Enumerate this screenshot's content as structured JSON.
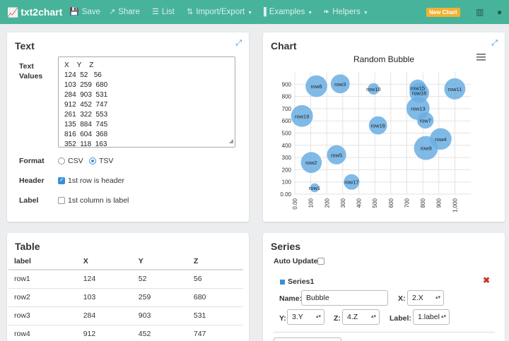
{
  "nav": {
    "brand": "txt2chart",
    "items": [
      {
        "label": "Save",
        "icon": "save-icon"
      },
      {
        "label": "Share",
        "icon": "share-icon"
      },
      {
        "label": "List",
        "icon": "list-icon"
      },
      {
        "label": "Import/Export",
        "icon": "import-export-icon"
      },
      {
        "label": "Examples",
        "icon": "bar-chart-icon"
      },
      {
        "label": "Helpers",
        "icon": "leaf-icon"
      }
    ],
    "new_chart": "New Chart",
    "accent": "#47b39a",
    "new_chart_color": "#f0b132"
  },
  "text_panel": {
    "title": "Text",
    "values_label_1": "Text",
    "values_label_2": "Values",
    "values": "X    Y    Z\n124  52   56\n103  259  680\n284  903  531\n912  452  747\n261  322  553\n135  884  745\n816  604  368\n352  118  163",
    "format_label": "Format",
    "format_csv": "CSV",
    "format_tsv": "TSV",
    "format_selected": "TSV",
    "header_label": "Header",
    "header_option": "1st row is header",
    "label_label": "Label",
    "label_option": "1st column is label"
  },
  "chart_panel": {
    "title": "Chart"
  },
  "chart_data": {
    "type": "scatter",
    "subtype": "bubble",
    "title": "Random Bubble",
    "xlim": [
      0,
      1100
    ],
    "ylim": [
      0,
      1000
    ],
    "x_ticks": [
      "0.00",
      "100",
      "200",
      "300",
      "400",
      "500",
      "600",
      "700",
      "800",
      "900",
      "1,000"
    ],
    "y_ticks": [
      "0.00",
      "100",
      "200",
      "300",
      "400",
      "500",
      "600",
      "700",
      "800",
      "900"
    ],
    "grid": true,
    "color": "#6aaee3",
    "points": [
      {
        "label": "row1",
        "x": 124,
        "y": 52,
        "z": 56
      },
      {
        "label": "row2",
        "x": 103,
        "y": 259,
        "z": 680
      },
      {
        "label": "row3",
        "x": 284,
        "y": 903,
        "z": 531
      },
      {
        "label": "row4",
        "x": 912,
        "y": 452,
        "z": 747
      },
      {
        "label": "row5",
        "x": 261,
        "y": 322,
        "z": 553
      },
      {
        "label": "row6",
        "x": 135,
        "y": 884,
        "z": 745
      },
      {
        "label": "row7",
        "x": 816,
        "y": 604,
        "z": 368
      },
      {
        "label": "row9",
        "x": 820,
        "y": 378,
        "z": 960
      },
      {
        "label": "row10",
        "x": 492,
        "y": 862,
        "z": 130
      },
      {
        "label": "row11",
        "x": 1000,
        "y": 862,
        "z": 700
      },
      {
        "label": "row13",
        "x": 770,
        "y": 702,
        "z": 880
      },
      {
        "label": "row15",
        "x": 768,
        "y": 870,
        "z": 380
      },
      {
        "label": "row16",
        "x": 520,
        "y": 563,
        "z": 480
      },
      {
        "label": "row17",
        "x": 355,
        "y": 100,
        "z": 320
      },
      {
        "label": "row18",
        "x": 778,
        "y": 830,
        "z": 580
      },
      {
        "label": "row19",
        "x": 45,
        "y": 640,
        "z": 760
      }
    ]
  },
  "table_panel": {
    "title": "Table",
    "columns": [
      "label",
      "X",
      "Y",
      "Z"
    ],
    "rows": [
      [
        "row1",
        "124",
        "52",
        "56"
      ],
      [
        "row2",
        "103",
        "259",
        "680"
      ],
      [
        "row3",
        "284",
        "903",
        "531"
      ],
      [
        "row4",
        "912",
        "452",
        "747"
      ]
    ]
  },
  "series_panel": {
    "title": "Series",
    "auto_update": "Auto Update",
    "series_name": "Series1",
    "name_label": "Name:",
    "name_value": "Bubble",
    "x_label": "X:",
    "x_value": "2.X",
    "y_label": "Y:",
    "y_value": "3.Y",
    "z_label": "Z:",
    "z_value": "4.Z",
    "label_label": "Label:",
    "label_value": "1.label"
  }
}
